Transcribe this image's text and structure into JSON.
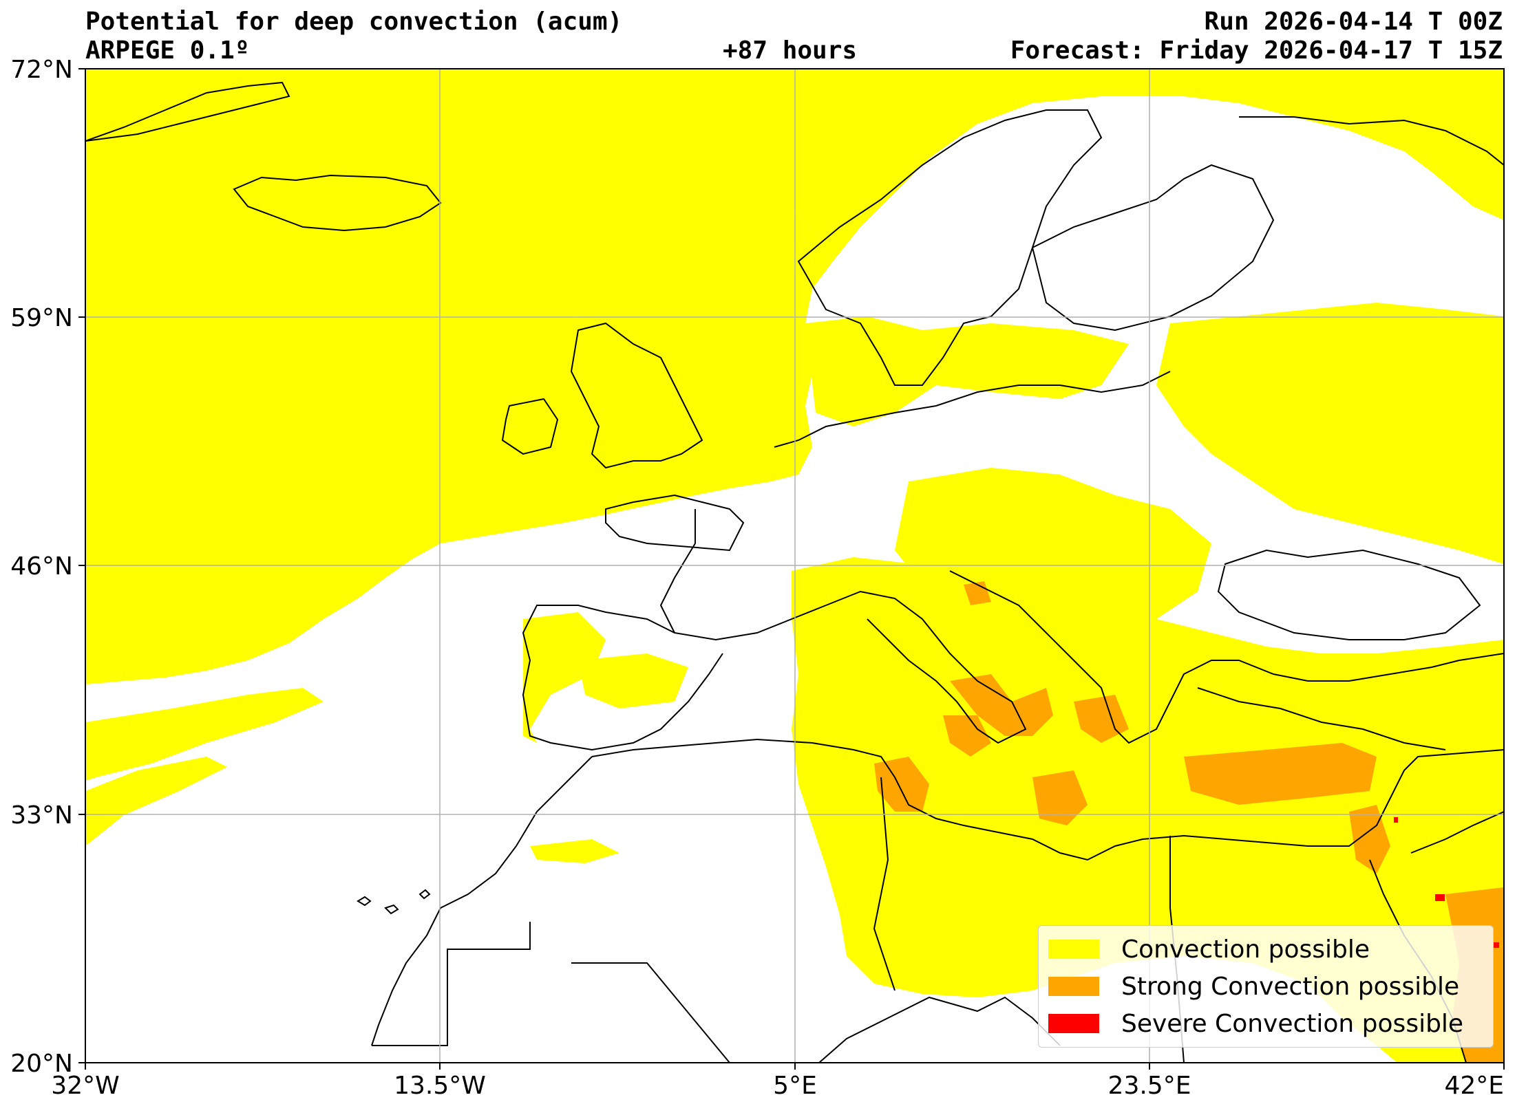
{
  "header": {
    "title": "Potential for deep convection (acum)",
    "model": "ARPEGE 0.1º",
    "run": "Run 2026-04-14 T 00Z",
    "lead": "+87 hours",
    "forecast": "Forecast: Friday 2026-04-17 T 15Z"
  },
  "map": {
    "lat_labels": [
      "72°N",
      "59°N",
      "46°N",
      "33°N",
      "20°N"
    ],
    "lon_labels": [
      "32°W",
      "13.5°W",
      "5°E",
      "23.5°E",
      "42°E"
    ],
    "extent": {
      "lon_min": -32,
      "lon_max": 42,
      "lat_min": 20,
      "lat_max": 72
    },
    "grid": true
  },
  "legend": {
    "items": [
      {
        "label": "Convection possible",
        "color": "#ffff00"
      },
      {
        "label": "Strong Convection possible",
        "color": "#ffa500"
      },
      {
        "label": "Severe Convection possible",
        "color": "#ff0000"
      }
    ]
  },
  "colors": {
    "convection": "#ffff00",
    "strong": "#ffa500",
    "severe": "#ff0000"
  }
}
